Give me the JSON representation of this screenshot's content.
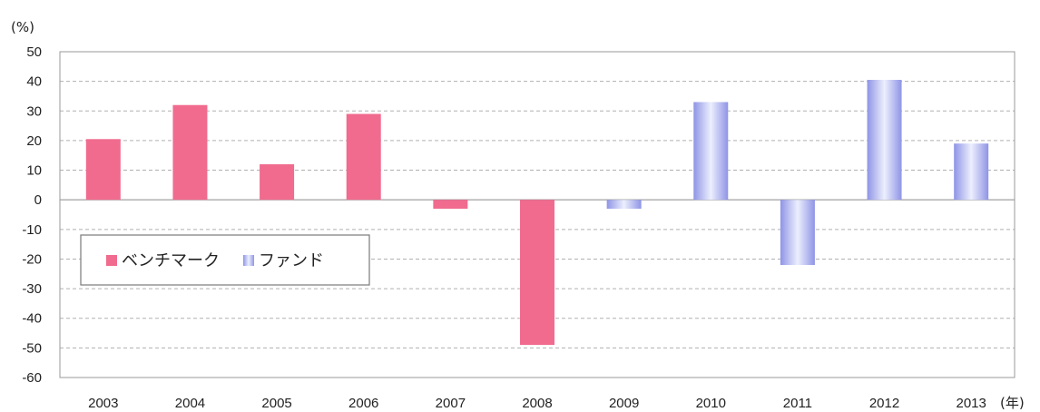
{
  "chart_data": {
    "type": "bar",
    "y_unit": "(%)",
    "x_unit": "(年)",
    "ylim": [
      -60,
      50
    ],
    "ytick_step": 10,
    "yticks": [
      "50",
      "40",
      "30",
      "20",
      "10",
      "0",
      "-10",
      "-20",
      "-30",
      "-40",
      "-50",
      "-60"
    ],
    "grid": "dashed horizontal",
    "categories": [
      "2003",
      "2004",
      "2005",
      "2006",
      "2007",
      "2008",
      "2009",
      "2010",
      "2011",
      "2012",
      "2013"
    ],
    "series": [
      {
        "name": "ベンチマーク",
        "values": [
          20.5,
          32,
          12,
          29,
          -3,
          -49,
          null,
          null,
          null,
          null,
          null
        ]
      },
      {
        "name": "ファンド",
        "values": [
          null,
          null,
          null,
          null,
          null,
          null,
          -3,
          33,
          -22,
          40.5,
          19
        ]
      }
    ],
    "legend_position": "left-center inside plot",
    "colors": {
      "benchmark": "#f06b8e",
      "fund_light": "#eceffd",
      "fund_dark": "#8f94e6",
      "grid": "#b0b0b0",
      "frame": "#9a9a9a"
    }
  }
}
